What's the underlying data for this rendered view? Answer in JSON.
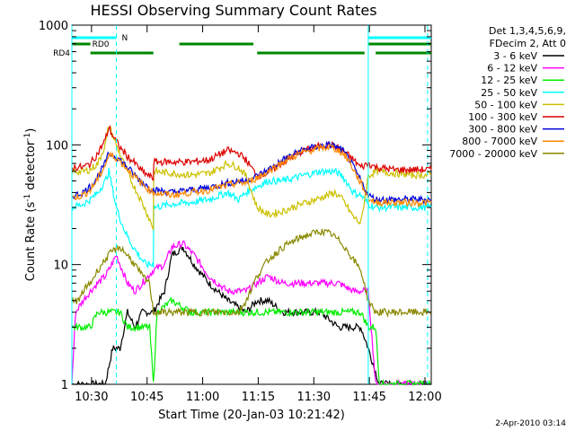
{
  "chart_data": {
    "type": "line",
    "title": "HESSI Observing Summary Count Rates",
    "xlabel": "Start Time (20-Jan-03 10:21:42)",
    "ylabel_parts": [
      "Count Rate (s",
      "-1",
      " detector",
      "-1",
      ")"
    ],
    "yscale": "log",
    "ylim": [
      1,
      1000
    ],
    "xlim_minutes": [
      3,
      100
    ],
    "x_ticks": [
      {
        "label": "10:30",
        "minute": 8.3
      },
      {
        "label": "10:45",
        "minute": 23.3
      },
      {
        "label": "11:00",
        "minute": 38.3
      },
      {
        "label": "11:15",
        "minute": 53.3
      },
      {
        "label": "11:30",
        "minute": 68.3
      },
      {
        "label": "11:45",
        "minute": 83.3
      },
      {
        "label": "12:00",
        "minute": 98.3
      }
    ],
    "y_ticks": [
      {
        "label": "1",
        "value": 1
      },
      {
        "label": "10",
        "value": 10
      },
      {
        "label": "100",
        "value": 100
      },
      {
        "label": "1000",
        "value": 1000
      }
    ],
    "legend_header": [
      "Det 1,3,4,5,6,9,",
      "FDecim 2, Att 0"
    ],
    "legend_position": "right",
    "series": [
      {
        "name": "3 - 6 keV",
        "color": "#000000",
        "points": [
          [
            3,
            1
          ],
          [
            8,
            1
          ],
          [
            12,
            1
          ],
          [
            14,
            2
          ],
          [
            16,
            2
          ],
          [
            18,
            4
          ],
          [
            20,
            3
          ],
          [
            22,
            4
          ],
          [
            25,
            4
          ],
          [
            28,
            6
          ],
          [
            30,
            12
          ],
          [
            33,
            14
          ],
          [
            36,
            10
          ],
          [
            40,
            7
          ],
          [
            45,
            5
          ],
          [
            50,
            4
          ],
          [
            53,
            5
          ],
          [
            56,
            5
          ],
          [
            60,
            4
          ],
          [
            65,
            4
          ],
          [
            70,
            4
          ],
          [
            75,
            3
          ],
          [
            79,
            3
          ],
          [
            81,
            3
          ],
          [
            83,
            2
          ],
          [
            86,
            1
          ],
          [
            90,
            1
          ],
          [
            100,
            1
          ]
        ]
      },
      {
        "name": "6 - 12 keV",
        "color": "#ff00ff",
        "points": [
          [
            3,
            1
          ],
          [
            4,
            4
          ],
          [
            6,
            5
          ],
          [
            8,
            6
          ],
          [
            10,
            7
          ],
          [
            12,
            8
          ],
          [
            13,
            9
          ],
          [
            15,
            12
          ],
          [
            18,
            7
          ],
          [
            20,
            6
          ],
          [
            22,
            7
          ],
          [
            25,
            9
          ],
          [
            28,
            10
          ],
          [
            30,
            14
          ],
          [
            33,
            15
          ],
          [
            36,
            12
          ],
          [
            40,
            8
          ],
          [
            45,
            6
          ],
          [
            50,
            6
          ],
          [
            53,
            7
          ],
          [
            56,
            8
          ],
          [
            60,
            7
          ],
          [
            65,
            7
          ],
          [
            70,
            7
          ],
          [
            75,
            7
          ],
          [
            79,
            6
          ],
          [
            81,
            6
          ],
          [
            83,
            6
          ],
          [
            85,
            1
          ],
          [
            86,
            1
          ],
          [
            90,
            1
          ],
          [
            100,
            1
          ]
        ]
      },
      {
        "name": "12 - 25 keV",
        "color": "#00ee00",
        "points": [
          [
            3,
            3
          ],
          [
            6,
            3
          ],
          [
            8,
            3
          ],
          [
            10,
            4
          ],
          [
            12,
            4
          ],
          [
            14,
            4
          ],
          [
            16,
            4
          ],
          [
            18,
            3
          ],
          [
            20,
            3
          ],
          [
            22,
            3
          ],
          [
            24,
            3
          ],
          [
            25,
            1
          ],
          [
            26,
            4
          ],
          [
            30,
            5
          ],
          [
            35,
            4
          ],
          [
            40,
            4
          ],
          [
            45,
            4
          ],
          [
            50,
            4
          ],
          [
            53,
            4
          ],
          [
            56,
            4
          ],
          [
            60,
            4
          ],
          [
            65,
            4
          ],
          [
            70,
            4
          ],
          [
            75,
            4
          ],
          [
            79,
            4
          ],
          [
            81,
            4
          ],
          [
            83,
            3
          ],
          [
            85,
            3
          ],
          [
            86,
            1
          ],
          [
            90,
            1
          ],
          [
            100,
            1
          ]
        ]
      },
      {
        "name": "25 - 50 keV",
        "color": "#00ffff",
        "points": [
          [
            3,
            30
          ],
          [
            6,
            32
          ],
          [
            8,
            35
          ],
          [
            10,
            40
          ],
          [
            12,
            50
          ],
          [
            13,
            60
          ],
          [
            15,
            30
          ],
          [
            17,
            20
          ],
          [
            19,
            15
          ],
          [
            21,
            12
          ],
          [
            23,
            10
          ],
          [
            25,
            10
          ],
          [
            25.1,
            30
          ],
          [
            30,
            32
          ],
          [
            35,
            33
          ],
          [
            40,
            35
          ],
          [
            45,
            40
          ],
          [
            48,
            35
          ],
          [
            50,
            40
          ],
          [
            53,
            45
          ],
          [
            56,
            50
          ],
          [
            60,
            50
          ],
          [
            65,
            55
          ],
          [
            70,
            60
          ],
          [
            74,
            60
          ],
          [
            76,
            55
          ],
          [
            78,
            45
          ],
          [
            79,
            40
          ],
          [
            81,
            38
          ],
          [
            83,
            32
          ],
          [
            85,
            30
          ],
          [
            90,
            30
          ],
          [
            95,
            30
          ],
          [
            100,
            30
          ]
        ]
      },
      {
        "name": "50 - 100 keV",
        "color": "#ccc000",
        "points": [
          [
            3,
            60
          ],
          [
            6,
            60
          ],
          [
            8,
            62
          ],
          [
            10,
            70
          ],
          [
            12,
            100
          ],
          [
            13,
            145
          ],
          [
            15,
            100
          ],
          [
            17,
            70
          ],
          [
            19,
            50
          ],
          [
            21,
            38
          ],
          [
            23,
            28
          ],
          [
            25,
            20
          ],
          [
            25.1,
            60
          ],
          [
            30,
            58
          ],
          [
            35,
            56
          ],
          [
            40,
            58
          ],
          [
            45,
            70
          ],
          [
            48,
            65
          ],
          [
            50,
            55
          ],
          [
            53,
            30
          ],
          [
            56,
            26
          ],
          [
            60,
            28
          ],
          [
            65,
            32
          ],
          [
            70,
            36
          ],
          [
            74,
            40
          ],
          [
            76,
            35
          ],
          [
            78,
            28
          ],
          [
            79,
            25
          ],
          [
            81,
            22
          ],
          [
            83,
            55
          ],
          [
            85,
            60
          ],
          [
            90,
            58
          ],
          [
            95,
            56
          ],
          [
            100,
            56
          ]
        ]
      },
      {
        "name": "100 - 300 keV",
        "color": "#dd0000",
        "points": [
          [
            3,
            65
          ],
          [
            6,
            65
          ],
          [
            8,
            70
          ],
          [
            10,
            85
          ],
          [
            12,
            110
          ],
          [
            13,
            140
          ],
          [
            14,
            120
          ],
          [
            16,
            95
          ],
          [
            18,
            80
          ],
          [
            20,
            70
          ],
          [
            22,
            60
          ],
          [
            25,
            52
          ],
          [
            25.1,
            72
          ],
          [
            30,
            72
          ],
          [
            35,
            72
          ],
          [
            40,
            75
          ],
          [
            45,
            90
          ],
          [
            48,
            85
          ],
          [
            50,
            75
          ],
          [
            53,
            55
          ],
          [
            56,
            58
          ],
          [
            60,
            72
          ],
          [
            65,
            88
          ],
          [
            70,
            98
          ],
          [
            73,
            100
          ],
          [
            76,
            90
          ],
          [
            79,
            75
          ],
          [
            81,
            65
          ],
          [
            83,
            70
          ],
          [
            85,
            65
          ],
          [
            90,
            62
          ],
          [
            95,
            62
          ],
          [
            100,
            62
          ]
        ]
      },
      {
        "name": "300 - 800 keV",
        "color": "#0000dd",
        "points": [
          [
            3,
            37
          ],
          [
            6,
            40
          ],
          [
            8,
            45
          ],
          [
            10,
            55
          ],
          [
            12,
            70
          ],
          [
            13,
            85
          ],
          [
            15,
            80
          ],
          [
            17,
            70
          ],
          [
            19,
            60
          ],
          [
            21,
            52
          ],
          [
            23,
            46
          ],
          [
            25,
            42
          ],
          [
            30,
            40
          ],
          [
            35,
            42
          ],
          [
            40,
            44
          ],
          [
            45,
            48
          ],
          [
            48,
            50
          ],
          [
            50,
            50
          ],
          [
            53,
            55
          ],
          [
            56,
            62
          ],
          [
            60,
            75
          ],
          [
            65,
            90
          ],
          [
            70,
            98
          ],
          [
            73,
            100
          ],
          [
            76,
            90
          ],
          [
            78,
            75
          ],
          [
            79,
            65
          ],
          [
            81,
            50
          ],
          [
            83,
            38
          ],
          [
            85,
            35
          ],
          [
            90,
            35
          ],
          [
            95,
            35
          ],
          [
            100,
            35
          ]
        ]
      },
      {
        "name": "800 - 7000 keV",
        "color": "#ff8800",
        "points": [
          [
            3,
            36
          ],
          [
            6,
            38
          ],
          [
            8,
            42
          ],
          [
            10,
            52
          ],
          [
            12,
            68
          ],
          [
            13,
            82
          ],
          [
            15,
            78
          ],
          [
            17,
            68
          ],
          [
            19,
            58
          ],
          [
            21,
            50
          ],
          [
            23,
            44
          ],
          [
            25,
            40
          ],
          [
            30,
            38
          ],
          [
            35,
            40
          ],
          [
            40,
            42
          ],
          [
            45,
            46
          ],
          [
            48,
            48
          ],
          [
            50,
            48
          ],
          [
            53,
            53
          ],
          [
            56,
            60
          ],
          [
            60,
            72
          ],
          [
            65,
            86
          ],
          [
            70,
            94
          ],
          [
            73,
            96
          ],
          [
            76,
            86
          ],
          [
            78,
            72
          ],
          [
            79,
            62
          ],
          [
            81,
            48
          ],
          [
            83,
            36
          ],
          [
            85,
            33
          ],
          [
            90,
            33
          ],
          [
            95,
            33
          ],
          [
            100,
            33
          ]
        ]
      },
      {
        "name": "7000 - 20000 keV",
        "color": "#888800",
        "points": [
          [
            3,
            5
          ],
          [
            5,
            5
          ],
          [
            6,
            6
          ],
          [
            8,
            7
          ],
          [
            10,
            9
          ],
          [
            12,
            11
          ],
          [
            14,
            13
          ],
          [
            16,
            14
          ],
          [
            18,
            12
          ],
          [
            20,
            10
          ],
          [
            22,
            8
          ],
          [
            24,
            7
          ],
          [
            25,
            4
          ],
          [
            28,
            4
          ],
          [
            32,
            4
          ],
          [
            36,
            4
          ],
          [
            40,
            4
          ],
          [
            44,
            4
          ],
          [
            48,
            4
          ],
          [
            50,
            5
          ],
          [
            53,
            8
          ],
          [
            56,
            11
          ],
          [
            60,
            14
          ],
          [
            65,
            17
          ],
          [
            70,
            19
          ],
          [
            73,
            18
          ],
          [
            76,
            15
          ],
          [
            79,
            11
          ],
          [
            81,
            9
          ],
          [
            83,
            5
          ],
          [
            85,
            4
          ],
          [
            90,
            4
          ],
          [
            95,
            4
          ],
          [
            100,
            4
          ]
        ]
      }
    ],
    "flag_bars": [
      {
        "label": "N",
        "color": "#00ffff",
        "segments": [
          [
            3,
            15
          ],
          [
            83,
            100
          ]
        ]
      },
      {
        "label": "RD0",
        "color": "#008800",
        "segments": [
          [
            3,
            8
          ],
          [
            32,
            52
          ],
          [
            83,
            100
          ]
        ]
      },
      {
        "label": "RD4",
        "color": "#008800",
        "segments": [
          [
            8,
            25
          ],
          [
            53,
            82
          ],
          [
            85,
            100
          ]
        ]
      }
    ],
    "vertical_lines": [
      {
        "minute": 3,
        "style": "solid",
        "color": "#00ffff"
      },
      {
        "minute": 15,
        "style": "dashed",
        "color": "#00ffff"
      },
      {
        "minute": 83,
        "style": "solid",
        "color": "#00ffff"
      },
      {
        "minute": 99,
        "style": "dashed",
        "color": "#00ffff"
      }
    ]
  },
  "footer_date": "2-Apr-2010 03:14"
}
